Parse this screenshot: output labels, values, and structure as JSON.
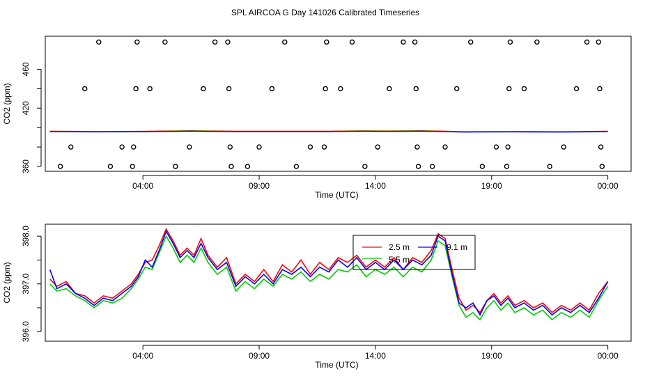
{
  "title": "SPL AIRCOA G  Day 141026  Calibrated Timeseries",
  "chart_data": [
    {
      "type": "scatter",
      "xlabel": "Time (UTC)",
      "ylabel": "CO2 (ppm)",
      "x_ticks": [
        {
          "value": 4,
          "label": "04:00"
        },
        {
          "value": 9,
          "label": "09:00"
        },
        {
          "value": 14,
          "label": "14:00"
        },
        {
          "value": 19,
          "label": "19:00"
        },
        {
          "value": 24,
          "label": "00:00"
        }
      ],
      "y_ticks": [
        360,
        380,
        400,
        420,
        440,
        460
      ],
      "y_tick_labels": [
        "360",
        "420",
        "460"
      ],
      "xlim": [
        -0.2,
        25.0
      ],
      "ylim": [
        355,
        494
      ],
      "grid": false,
      "points": [
        {
          "x": 0.45,
          "y": 360
        },
        {
          "x": 0.9,
          "y": 380
        },
        {
          "x": 1.5,
          "y": 440
        },
        {
          "x": 2.1,
          "y": 500
        },
        {
          "x": 2.6,
          "y": 360
        },
        {
          "x": 3.1,
          "y": 380
        },
        {
          "x": 3.55,
          "y": 360
        },
        {
          "x": 3.6,
          "y": 380
        },
        {
          "x": 3.7,
          "y": 440
        },
        {
          "x": 3.75,
          "y": 500
        },
        {
          "x": 4.3,
          "y": 440
        },
        {
          "x": 4.95,
          "y": 500
        },
        {
          "x": 5.4,
          "y": 360
        },
        {
          "x": 6.0,
          "y": 380
        },
        {
          "x": 6.6,
          "y": 440
        },
        {
          "x": 7.1,
          "y": 500
        },
        {
          "x": 7.65,
          "y": 500
        },
        {
          "x": 7.7,
          "y": 440
        },
        {
          "x": 7.75,
          "y": 380
        },
        {
          "x": 7.8,
          "y": 360
        },
        {
          "x": 8.5,
          "y": 360
        },
        {
          "x": 9.0,
          "y": 380
        },
        {
          "x": 9.55,
          "y": 440
        },
        {
          "x": 10.1,
          "y": 500
        },
        {
          "x": 10.6,
          "y": 360
        },
        {
          "x": 11.2,
          "y": 380
        },
        {
          "x": 11.8,
          "y": 380
        },
        {
          "x": 11.85,
          "y": 440
        },
        {
          "x": 11.9,
          "y": 500
        },
        {
          "x": 12.5,
          "y": 440
        },
        {
          "x": 13.0,
          "y": 500
        },
        {
          "x": 13.55,
          "y": 360
        },
        {
          "x": 14.1,
          "y": 380
        },
        {
          "x": 14.6,
          "y": 440
        },
        {
          "x": 15.2,
          "y": 500
        },
        {
          "x": 15.7,
          "y": 500
        },
        {
          "x": 15.75,
          "y": 440
        },
        {
          "x": 15.8,
          "y": 380
        },
        {
          "x": 15.85,
          "y": 360
        },
        {
          "x": 16.45,
          "y": 360
        },
        {
          "x": 17.0,
          "y": 380
        },
        {
          "x": 17.5,
          "y": 440
        },
        {
          "x": 18.1,
          "y": 500
        },
        {
          "x": 18.6,
          "y": 360
        },
        {
          "x": 19.2,
          "y": 380
        },
        {
          "x": 19.65,
          "y": 360
        },
        {
          "x": 19.7,
          "y": 380
        },
        {
          "x": 19.75,
          "y": 440
        },
        {
          "x": 19.8,
          "y": 500
        },
        {
          "x": 20.4,
          "y": 440
        },
        {
          "x": 20.95,
          "y": 500
        },
        {
          "x": 21.5,
          "y": 360
        },
        {
          "x": 22.1,
          "y": 380
        },
        {
          "x": 22.65,
          "y": 440
        },
        {
          "x": 23.1,
          "y": 500
        },
        {
          "x": 23.6,
          "y": 500
        },
        {
          "x": 23.65,
          "y": 440
        },
        {
          "x": 23.7,
          "y": 380
        },
        {
          "x": 23.75,
          "y": 360
        }
      ],
      "flat_series": {
        "colors": [
          "#ff0000",
          "#00cc00",
          "#0000ff"
        ],
        "x": [
          0.0,
          2.0,
          4.0,
          6.0,
          8.0,
          10.0,
          12.0,
          13.5,
          14.5,
          16.0,
          17.8,
          18.5,
          20.0,
          22.0,
          24.0
        ],
        "y": [
          396.9,
          396.6,
          396.8,
          397.5,
          396.9,
          396.9,
          396.9,
          397.4,
          397.2,
          397.5,
          396.4,
          396.5,
          396.6,
          396.4,
          396.9
        ]
      }
    },
    {
      "type": "line",
      "xlabel": "Time (UTC)",
      "ylabel": "CO2 (ppm)",
      "x_ticks": [
        {
          "value": 4,
          "label": "04:00"
        },
        {
          "value": 9,
          "label": "09:00"
        },
        {
          "value": 14,
          "label": "14:00"
        },
        {
          "value": 19,
          "label": "19:00"
        },
        {
          "value": 24,
          "label": "00:00"
        }
      ],
      "y_ticks": [
        396.0,
        396.5,
        397.0,
        397.5,
        398.0
      ],
      "y_tick_labels": [
        "396.0",
        "397.0",
        "398.0"
      ],
      "xlim": [
        -0.2,
        25.0
      ],
      "ylim": [
        395.8,
        398.25
      ],
      "grid": false,
      "legend": {
        "placement": "top-center",
        "entries": [
          {
            "label": "2.5 m",
            "color": "#ff0000"
          },
          {
            "label": "5.5 m",
            "color": "#00cc00"
          },
          {
            "label": "9.1 m",
            "color": "#0000ff"
          }
        ]
      },
      "series": [
        {
          "color": "#ff0000",
          "x": [
            0.0,
            0.3,
            0.7,
            1.1,
            1.5,
            1.9,
            2.3,
            2.7,
            3.1,
            3.5,
            3.8,
            4.1,
            4.4,
            4.7,
            5.0,
            5.3,
            5.6,
            5.9,
            6.2,
            6.5,
            6.8,
            7.2,
            7.6,
            8.0,
            8.4,
            8.8,
            9.2,
            9.6,
            10.0,
            10.4,
            10.8,
            11.2,
            11.6,
            12.0,
            12.4,
            12.8,
            13.2,
            13.6,
            14.0,
            14.4,
            14.8,
            15.2,
            15.6,
            16.0,
            16.4,
            16.7,
            17.0,
            17.3,
            17.6,
            17.9,
            18.2,
            18.5,
            18.8,
            19.1,
            19.4,
            19.7,
            20.0,
            20.4,
            20.8,
            21.2,
            21.6,
            22.0,
            22.4,
            22.8,
            23.2,
            23.6,
            24.0
          ],
          "y": [
            397.1,
            396.95,
            397.05,
            396.8,
            396.75,
            396.6,
            396.75,
            396.7,
            396.85,
            397.0,
            397.2,
            397.45,
            397.5,
            397.8,
            398.15,
            397.9,
            397.6,
            397.75,
            397.6,
            397.95,
            397.6,
            397.35,
            397.55,
            397.0,
            397.2,
            397.05,
            397.3,
            397.05,
            397.4,
            397.25,
            397.5,
            397.2,
            397.45,
            397.3,
            397.55,
            397.45,
            397.6,
            397.35,
            397.5,
            397.35,
            397.55,
            397.3,
            397.55,
            397.45,
            397.7,
            398.05,
            397.95,
            397.3,
            396.7,
            396.45,
            396.55,
            396.4,
            396.65,
            396.8,
            396.6,
            396.75,
            396.55,
            396.65,
            396.5,
            396.6,
            396.4,
            396.55,
            396.45,
            396.6,
            396.45,
            396.8,
            397.05
          ]
        },
        {
          "color": "#00cc00",
          "x": [
            0.0,
            0.3,
            0.7,
            1.1,
            1.5,
            1.9,
            2.3,
            2.7,
            3.1,
            3.5,
            3.8,
            4.1,
            4.4,
            4.7,
            5.0,
            5.3,
            5.6,
            5.9,
            6.2,
            6.5,
            6.8,
            7.2,
            7.6,
            8.0,
            8.4,
            8.8,
            9.2,
            9.6,
            10.0,
            10.4,
            10.8,
            11.2,
            11.6,
            12.0,
            12.4,
            12.8,
            13.2,
            13.6,
            14.0,
            14.4,
            14.8,
            15.2,
            15.6,
            16.0,
            16.4,
            16.7,
            17.0,
            17.3,
            17.6,
            17.9,
            18.2,
            18.5,
            18.8,
            19.1,
            19.4,
            19.7,
            20.0,
            20.4,
            20.8,
            21.2,
            21.6,
            22.0,
            22.4,
            22.8,
            23.2,
            23.6,
            24.0
          ],
          "y": [
            397.0,
            396.85,
            396.9,
            396.75,
            396.65,
            396.5,
            396.65,
            396.6,
            396.7,
            396.9,
            397.1,
            397.35,
            397.3,
            397.65,
            398.0,
            397.75,
            397.45,
            397.6,
            397.45,
            397.75,
            397.45,
            397.2,
            397.35,
            396.85,
            397.05,
            396.9,
            397.1,
            396.95,
            397.2,
            397.1,
            397.25,
            397.05,
            397.2,
            397.1,
            397.3,
            397.25,
            397.4,
            397.15,
            397.3,
            397.2,
            397.35,
            397.15,
            397.35,
            397.25,
            397.5,
            397.9,
            397.8,
            397.15,
            396.55,
            396.3,
            396.4,
            396.25,
            396.5,
            396.65,
            396.45,
            396.6,
            396.4,
            396.5,
            396.35,
            396.45,
            396.25,
            396.4,
            396.3,
            396.45,
            396.3,
            396.65,
            396.95
          ]
        },
        {
          "color": "#0000ff",
          "x": [
            0.0,
            0.3,
            0.7,
            1.1,
            1.5,
            1.9,
            2.3,
            2.7,
            3.1,
            3.5,
            3.8,
            4.1,
            4.4,
            4.7,
            5.0,
            5.3,
            5.6,
            5.9,
            6.2,
            6.5,
            6.8,
            7.2,
            7.6,
            8.0,
            8.4,
            8.8,
            9.2,
            9.6,
            10.0,
            10.4,
            10.8,
            11.2,
            11.6,
            12.0,
            12.4,
            12.8,
            13.2,
            13.6,
            14.0,
            14.4,
            14.8,
            15.2,
            15.6,
            16.0,
            16.4,
            16.7,
            17.0,
            17.3,
            17.6,
            17.9,
            18.2,
            18.5,
            18.8,
            19.1,
            19.4,
            19.7,
            20.0,
            20.4,
            20.8,
            21.2,
            21.6,
            22.0,
            22.4,
            22.8,
            23.2,
            23.6,
            24.0
          ],
          "y": [
            397.3,
            396.9,
            397.0,
            396.8,
            396.7,
            396.55,
            396.7,
            396.65,
            396.8,
            396.95,
            397.15,
            397.5,
            397.35,
            397.7,
            398.1,
            397.85,
            397.55,
            397.7,
            397.55,
            397.85,
            397.55,
            397.3,
            397.45,
            396.95,
            397.15,
            397.0,
            397.2,
            397.0,
            397.3,
            397.2,
            397.35,
            397.15,
            397.35,
            397.25,
            397.5,
            397.35,
            397.55,
            397.3,
            397.45,
            397.3,
            397.5,
            397.3,
            397.5,
            397.4,
            397.6,
            398.0,
            397.9,
            397.2,
            396.6,
            396.5,
            396.6,
            396.35,
            396.65,
            396.75,
            396.55,
            396.7,
            396.5,
            396.6,
            396.45,
            396.55,
            396.35,
            396.5,
            396.4,
            396.55,
            396.4,
            396.7,
            397.05
          ]
        }
      ]
    }
  ]
}
